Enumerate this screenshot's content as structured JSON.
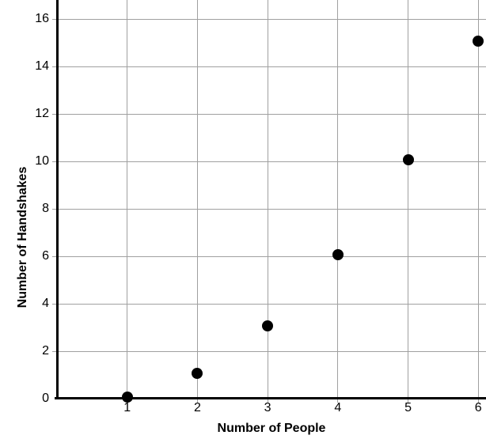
{
  "chart_data": {
    "type": "scatter",
    "title": "",
    "xlabel": "Number of People",
    "ylabel": "Number of Handshakes",
    "x": [
      1,
      2,
      3,
      4,
      5,
      6
    ],
    "y": [
      0,
      1,
      3,
      6,
      10,
      15
    ],
    "xlim": [
      0,
      6.11
    ],
    "ylim": [
      0,
      16.8
    ],
    "x_ticks": [
      1,
      2,
      3,
      4,
      5,
      6
    ],
    "y_ticks": [
      0,
      2,
      4,
      6,
      8,
      10,
      12,
      14,
      16
    ],
    "grid": true,
    "legend": "none",
    "point_color": "#000000",
    "grid_color": "#a0a0a0",
    "axis_color": "#000000",
    "background_color": "#ffffff"
  }
}
